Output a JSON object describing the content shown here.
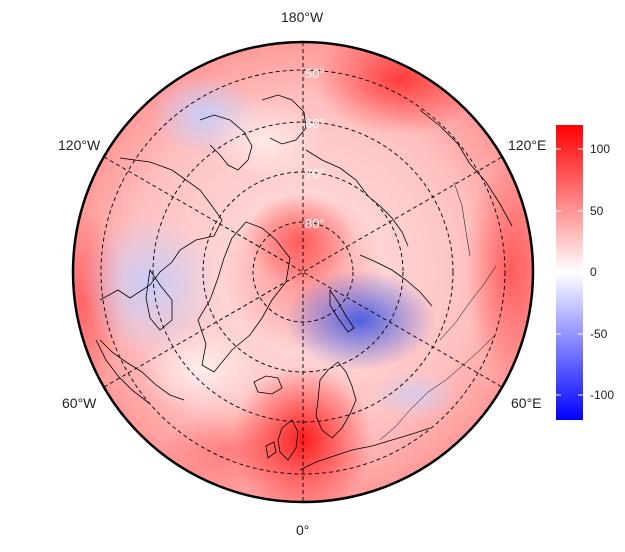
{
  "map": {
    "projection": "north-polar-stereographic",
    "center_longitude_at_bottom": "0°",
    "longitude_labels": [
      {
        "text": "180°W",
        "lon": 180
      },
      {
        "text": "120°W",
        "lon": -120
      },
      {
        "text": "60°W",
        "lon": -60
      },
      {
        "text": "0°",
        "lon": 0
      },
      {
        "text": "60°E",
        "lon": 60
      },
      {
        "text": "120°E",
        "lon": 120
      }
    ],
    "latitude_labels": [
      {
        "text": "50°",
        "lat": 50
      },
      {
        "text": "60°",
        "lat": 60
      },
      {
        "text": "70°",
        "lat": 70
      },
      {
        "text": "80°",
        "lat": 80
      }
    ],
    "graticule": {
      "style": "dashed",
      "latitudes": [
        50,
        60,
        70,
        80
      ],
      "longitudes": [
        0,
        60,
        120,
        180,
        240,
        300
      ]
    },
    "coastlines": "black"
  },
  "colorbar": {
    "ticks": [
      100,
      50,
      0,
      -50,
      -100
    ],
    "range": [
      -120,
      120
    ],
    "colors": {
      "low": "#0000ff",
      "mid": "#ffffff",
      "high": "#ff0000"
    }
  }
}
